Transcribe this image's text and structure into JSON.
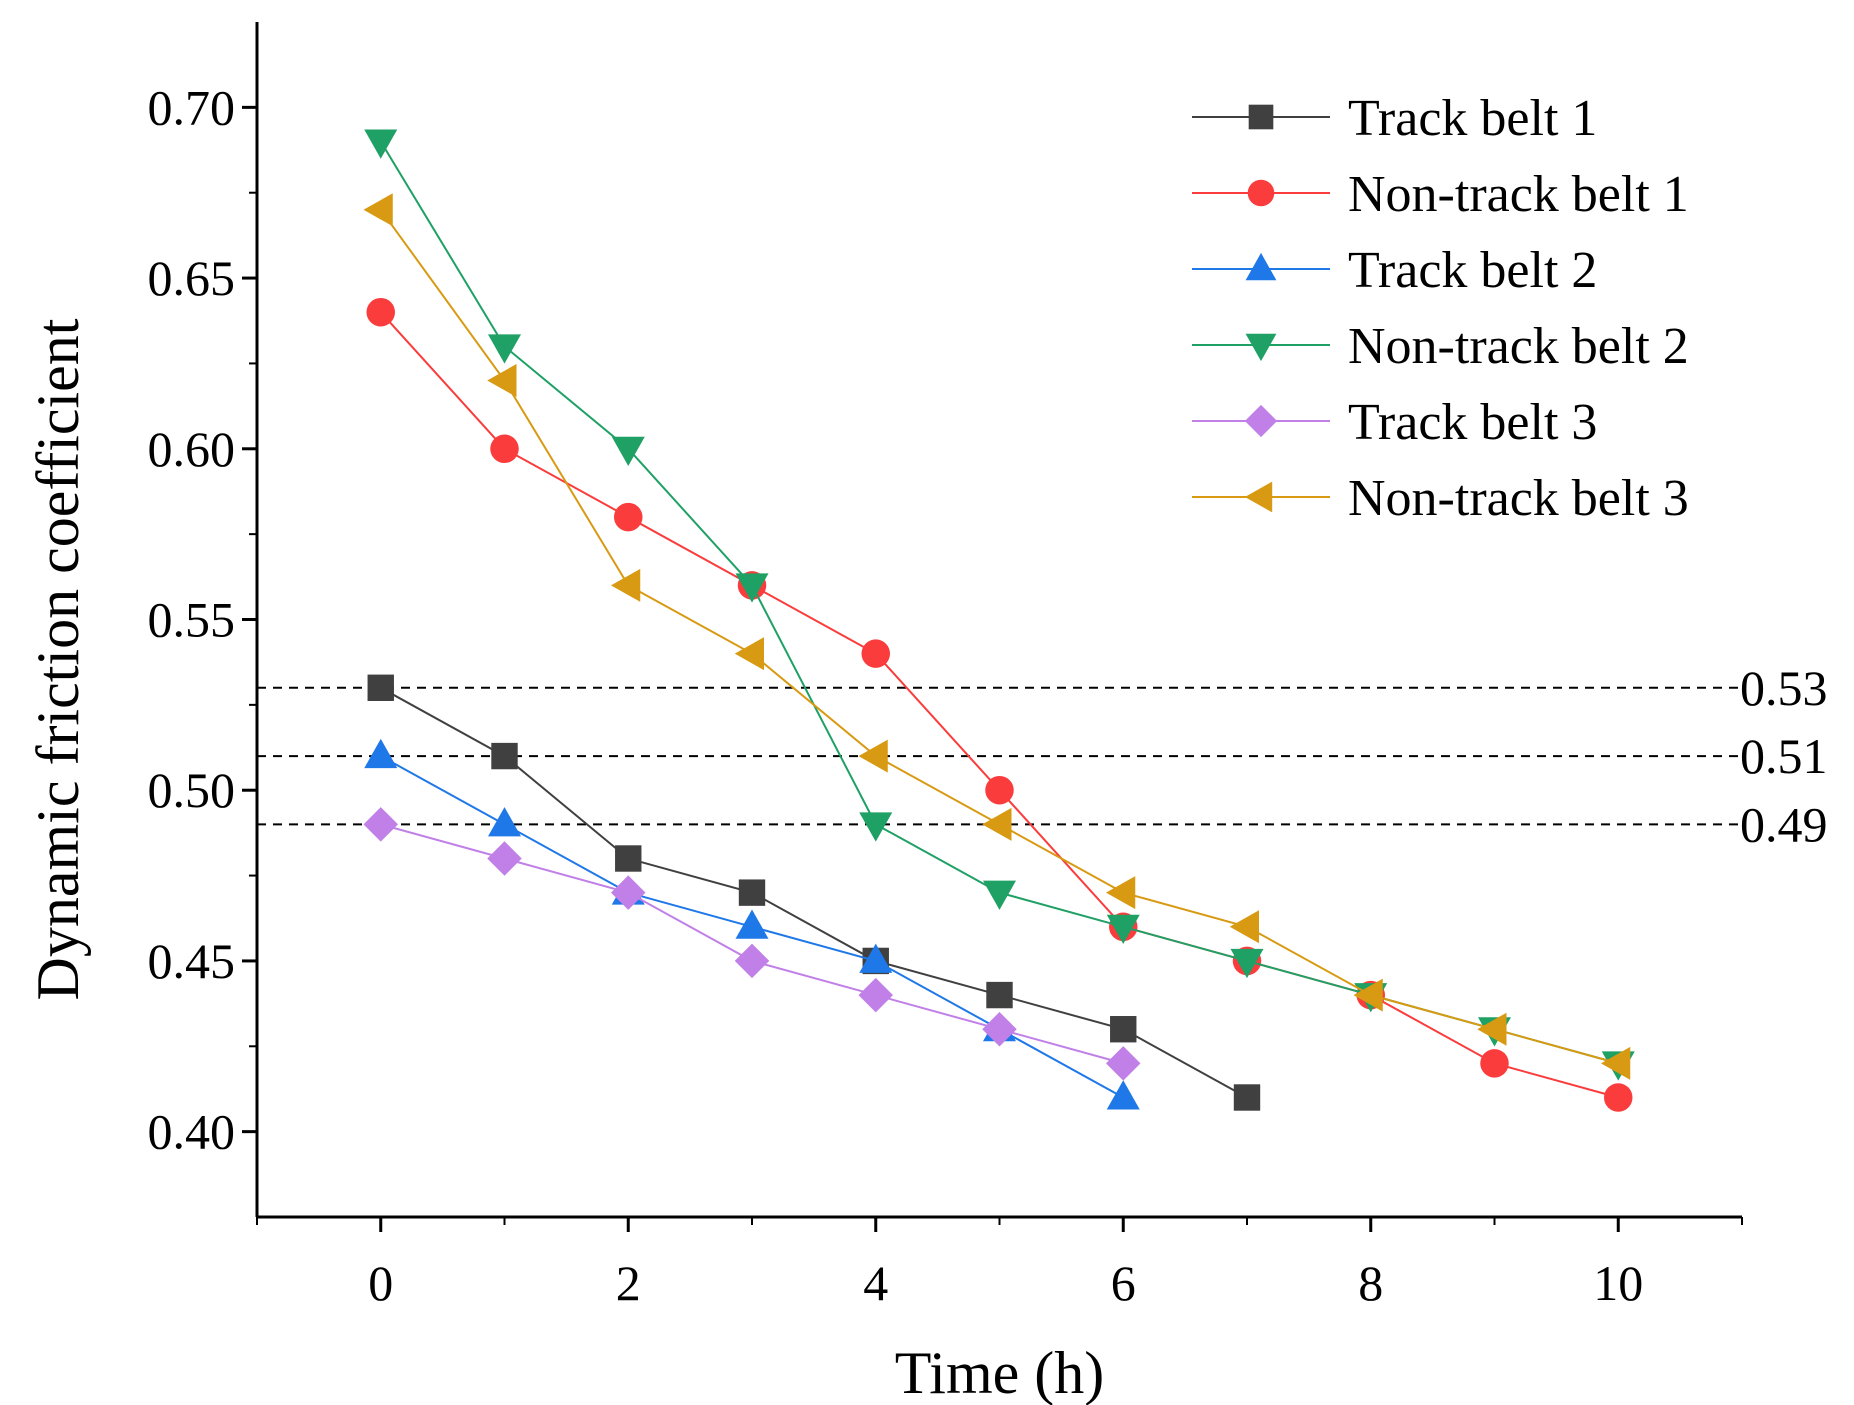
{
  "chart_data": {
    "type": "line",
    "title": "",
    "xlabel": "Time (h)",
    "ylabel": "Dynamic friction coefficient",
    "xlim": [
      -1,
      11
    ],
    "ylim": [
      0.375,
      0.725
    ],
    "x_ticks": [
      0,
      2,
      4,
      6,
      8,
      10
    ],
    "x_tick_labels": [
      "0",
      "2",
      "4",
      "6",
      "8",
      "10"
    ],
    "y_ticks": [
      0.4,
      0.45,
      0.5,
      0.55,
      0.6,
      0.65,
      0.7
    ],
    "y_tick_labels": [
      "0.40",
      "0.45",
      "0.50",
      "0.55",
      "0.60",
      "0.65",
      "0.70"
    ],
    "grid": false,
    "legend_position": "top-right",
    "series": [
      {
        "name": "Track belt 1",
        "color": "#404040",
        "marker": "square",
        "x": [
          0,
          1,
          2,
          3,
          4,
          5,
          6,
          7
        ],
        "values": [
          0.53,
          0.51,
          0.48,
          0.47,
          0.45,
          0.44,
          0.43,
          0.41
        ]
      },
      {
        "name": "Non-track belt 1",
        "color": "#fa3c3c",
        "marker": "circle",
        "x": [
          0,
          1,
          2,
          3,
          4,
          5,
          6,
          7,
          8,
          9,
          10
        ],
        "values": [
          0.64,
          0.6,
          0.58,
          0.56,
          0.54,
          0.5,
          0.46,
          0.45,
          0.44,
          0.42,
          0.41
        ]
      },
      {
        "name": "Track belt 2",
        "color": "#1f78e8",
        "marker": "triangle-up",
        "x": [
          0,
          1,
          2,
          3,
          4,
          5,
          6
        ],
        "values": [
          0.51,
          0.49,
          0.47,
          0.46,
          0.45,
          0.43,
          0.41
        ]
      },
      {
        "name": "Non-track belt 2",
        "color": "#1fa065",
        "marker": "triangle-down",
        "x": [
          0,
          1,
          2,
          3,
          4,
          5,
          6,
          7,
          8,
          9,
          10
        ],
        "values": [
          0.69,
          0.63,
          0.6,
          0.56,
          0.49,
          0.47,
          0.46,
          0.45,
          0.44,
          0.43,
          0.42
        ]
      },
      {
        "name": "Track belt 3",
        "color": "#c080e8",
        "marker": "diamond",
        "x": [
          0,
          1,
          2,
          3,
          4,
          5,
          6
        ],
        "values": [
          0.49,
          0.48,
          0.47,
          0.45,
          0.44,
          0.43,
          0.42
        ]
      },
      {
        "name": "Non-track belt 3",
        "color": "#d89a12",
        "marker": "triangle-left",
        "x": [
          0,
          1,
          2,
          3,
          4,
          5,
          6,
          7,
          8,
          9,
          10
        ],
        "values": [
          0.67,
          0.62,
          0.56,
          0.54,
          0.51,
          0.49,
          0.47,
          0.46,
          0.44,
          0.43,
          0.42
        ]
      }
    ],
    "reference_lines": [
      {
        "value": 0.53,
        "label": "0.53"
      },
      {
        "value": 0.51,
        "label": "0.51"
      },
      {
        "value": 0.49,
        "label": "0.49"
      }
    ]
  }
}
